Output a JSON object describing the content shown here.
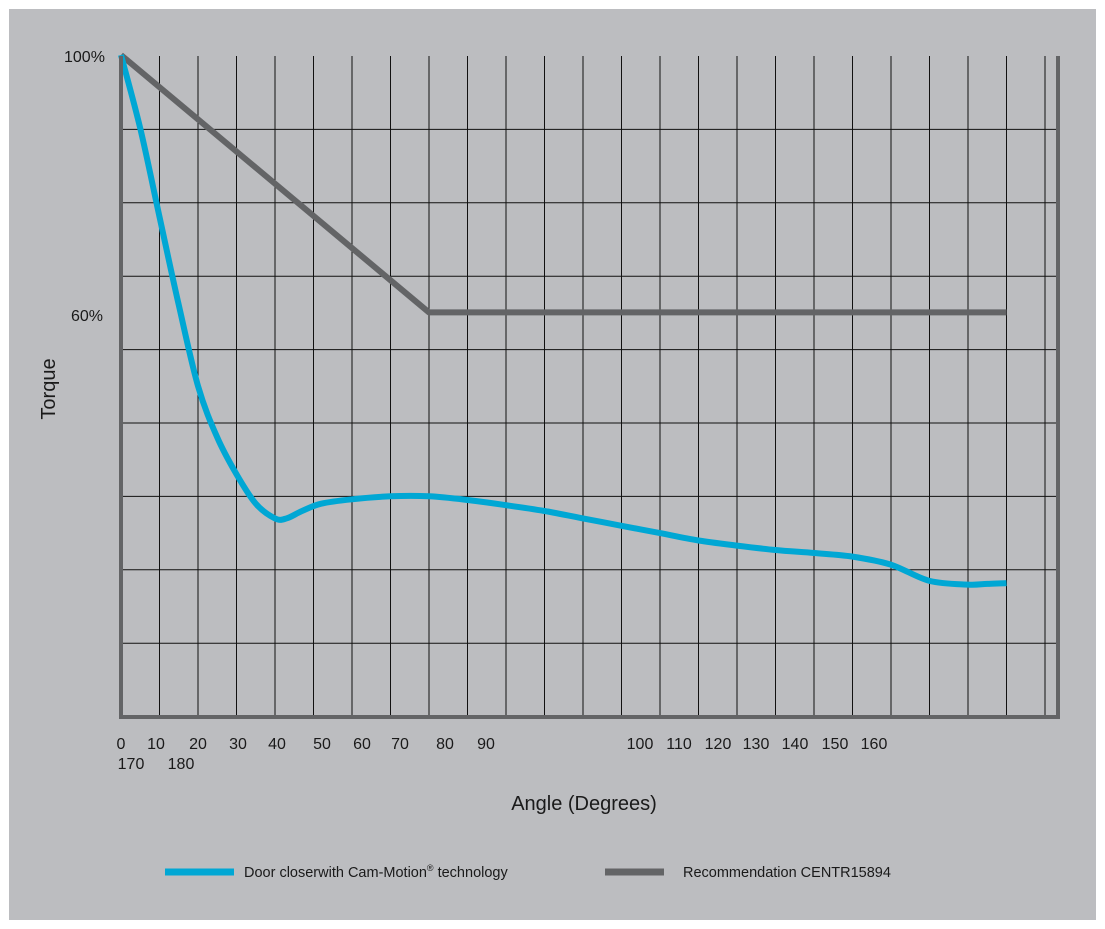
{
  "chart_data": {
    "type": "line",
    "xlabel": "Angle (Degrees)",
    "ylabel": "Torque",
    "x_tick_labels": [
      "0",
      "10",
      "20",
      "30",
      "40",
      "50",
      "60",
      "70",
      "80",
      "90",
      "100",
      "110",
      "120",
      "130",
      "140",
      "150",
      "160"
    ],
    "x_tick_labels_row2": [
      "170",
      "180"
    ],
    "y_tick_labels": [
      "100%",
      "60%"
    ],
    "xlim": [
      0,
      240
    ],
    "ylim": [
      10,
      100
    ],
    "grid": true,
    "legend_position": "bottom",
    "series": [
      {
        "name": "Door closerwith Cam-Motion",
        "name_superscript": "®",
        "name_suffix": "technology",
        "color": "#00a7d4",
        "x": [
          0,
          5,
          10,
          15,
          20,
          25,
          30,
          35,
          40,
          43,
          47,
          52,
          60,
          70,
          80,
          90,
          100,
          110,
          120,
          130,
          140,
          150,
          160,
          170,
          180,
          190,
          200,
          210,
          220,
          225,
          230
        ],
        "y": [
          100,
          90,
          78,
          66,
          55,
          48,
          43,
          39,
          37,
          37,
          38,
          39,
          39.6,
          40,
          40,
          39.5,
          38.8,
          38,
          37,
          36,
          35,
          34,
          33.3,
          32.7,
          32.3,
          31.8,
          30.7,
          28.5,
          28,
          28.1,
          28.2
        ]
      },
      {
        "name": "Recommendation  CENTR15894",
        "color": "#636466",
        "x": [
          0,
          80,
          230
        ],
        "y": [
          100,
          65,
          65
        ]
      }
    ]
  }
}
